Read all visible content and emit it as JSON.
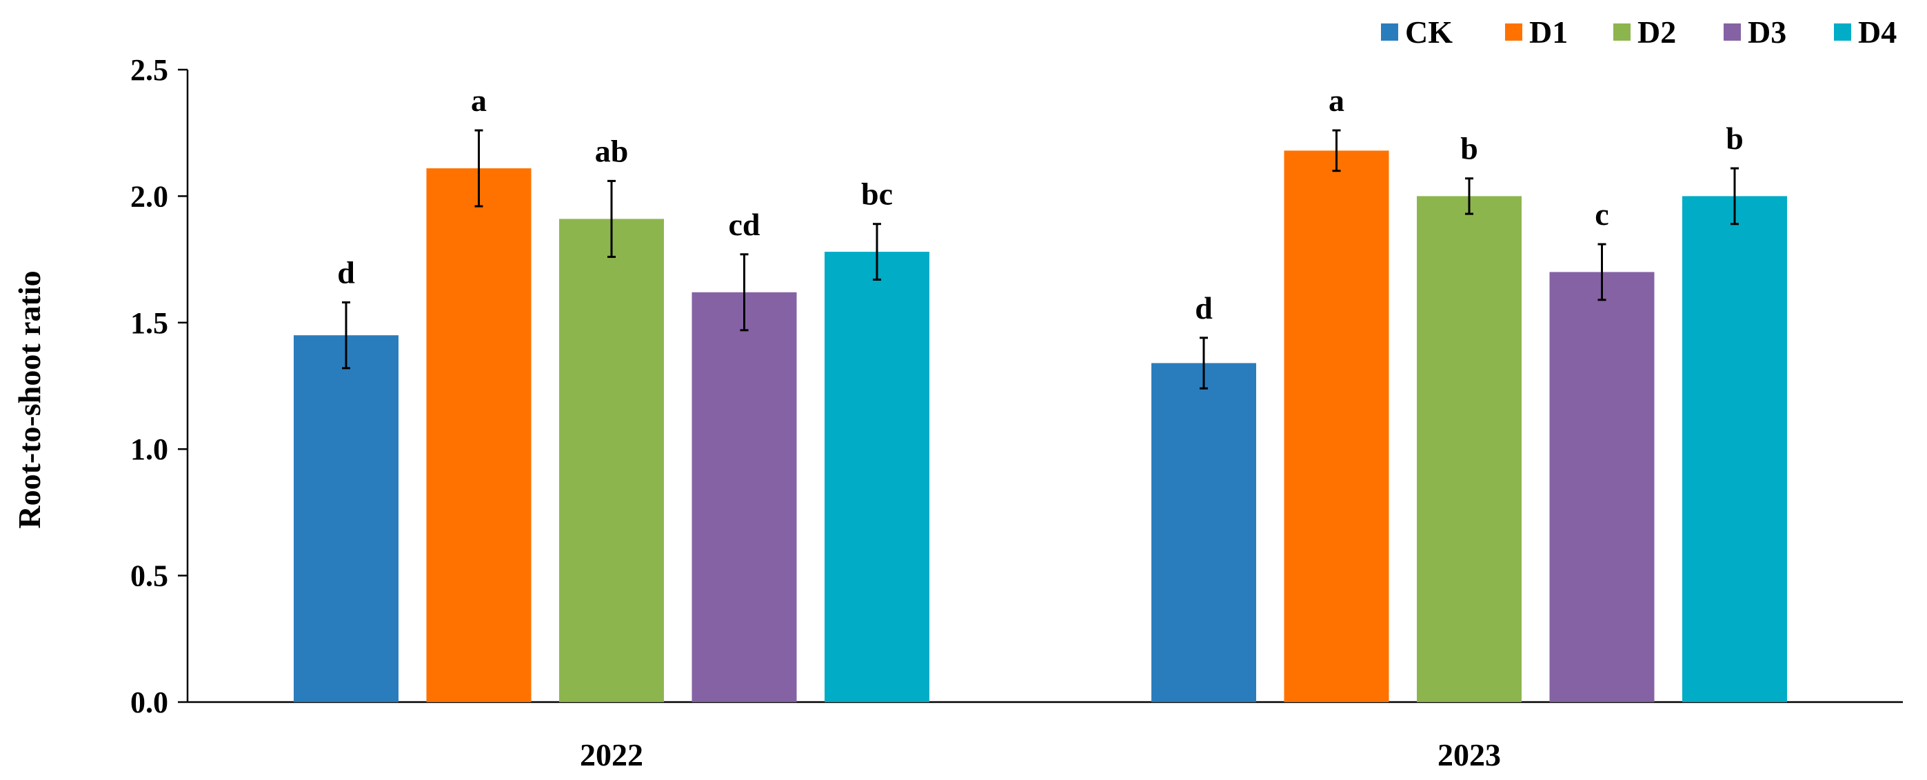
{
  "chart_data": {
    "type": "bar",
    "xlabel": "",
    "ylabel": "Root-to-shoot ratio",
    "ylim": [
      0,
      2.5
    ],
    "yticks": [
      "0.0",
      "0.5",
      "1.0",
      "1.5",
      "2.0",
      "2.5"
    ],
    "categories": [
      "2022",
      "2023"
    ],
    "legend_position": "top-right",
    "grid": false,
    "series": [
      {
        "name": "CK",
        "color": "#2a7dbd",
        "values": [
          1.45,
          1.34
        ],
        "errors": [
          0.13,
          0.1
        ],
        "letters": [
          "d",
          "d"
        ]
      },
      {
        "name": "D1",
        "color": "#ff7200",
        "values": [
          2.11,
          2.18
        ],
        "errors": [
          0.15,
          0.08
        ],
        "letters": [
          "a",
          "a"
        ]
      },
      {
        "name": "D2",
        "color": "#8db54e",
        "values": [
          1.91,
          2.0
        ],
        "errors": [
          0.15,
          0.07
        ],
        "letters": [
          "ab",
          "b"
        ]
      },
      {
        "name": "D3",
        "color": "#8562a4",
        "values": [
          1.62,
          1.7
        ],
        "errors": [
          0.15,
          0.11
        ],
        "letters": [
          "cd",
          "c"
        ]
      },
      {
        "name": "D4",
        "color": "#00acc6",
        "values": [
          1.78,
          2.0
        ],
        "errors": [
          0.11,
          0.11
        ],
        "letters": [
          "bc",
          "b"
        ]
      }
    ]
  }
}
